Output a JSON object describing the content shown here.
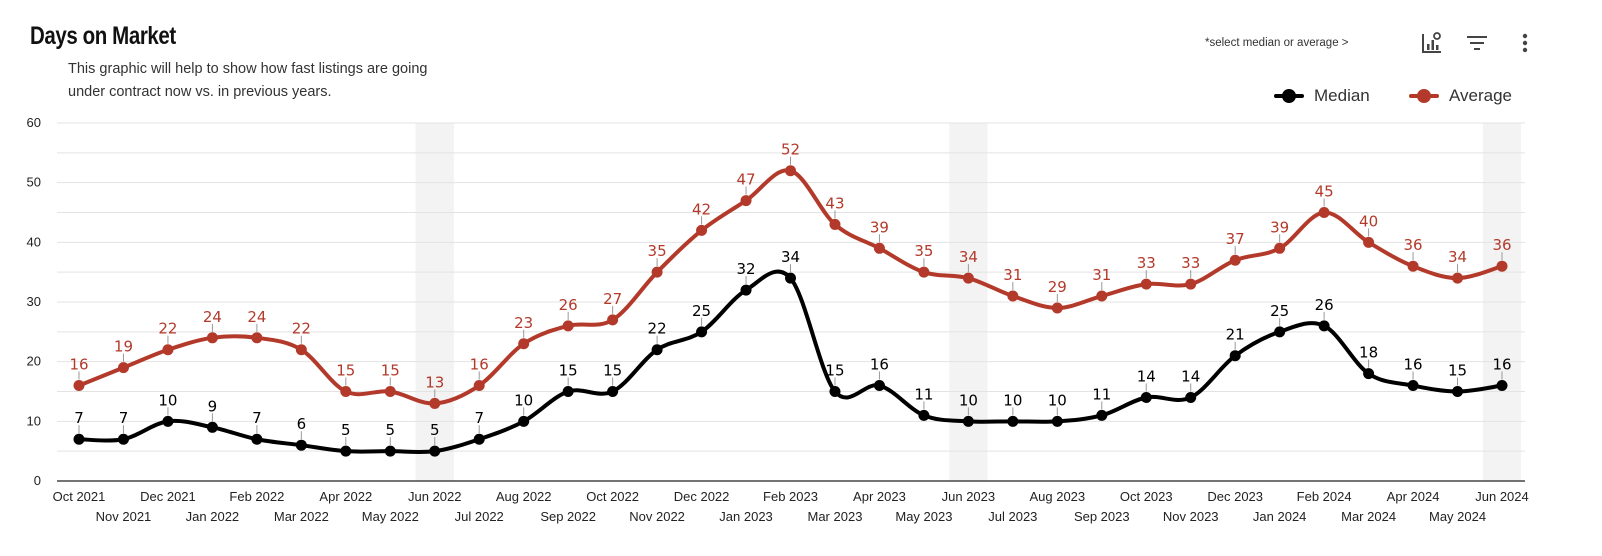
{
  "header": {
    "title": "Days on Market",
    "subtitle_line1": "This graphic will help to show how fast listings are going",
    "subtitle_line2": "under contract now vs. in previous years.",
    "hint": "*select median or average >"
  },
  "toolbar": {
    "icons": [
      "chart-settings-icon",
      "filter-icon",
      "more-vert-icon"
    ]
  },
  "colors": {
    "median": "#000000",
    "average": "#b33a2b",
    "grid": "#e3e3e3",
    "band": "#f3f3f3"
  },
  "chart_data": {
    "type": "line",
    "title": "Days on Market",
    "categories": [
      "Oct 2021",
      "Nov 2021",
      "Dec 2021",
      "Jan 2022",
      "Feb 2022",
      "Mar 2022",
      "Apr 2022",
      "May 2022",
      "Jun 2022",
      "Jul 2022",
      "Aug 2022",
      "Sep 2022",
      "Oct 2022",
      "Nov 2022",
      "Dec 2022",
      "Jan 2023",
      "Feb 2023",
      "Mar 2023",
      "Apr 2023",
      "May 2023",
      "Jun 2023",
      "Jul 2023",
      "Aug 2023",
      "Sep 2023",
      "Oct 2023",
      "Nov 2023",
      "Dec 2023",
      "Jan 2024",
      "Feb 2024",
      "Mar 2024",
      "Apr 2024",
      "May 2024",
      "Jun 2024"
    ],
    "series": [
      {
        "name": "Median",
        "color": "#000000",
        "values": [
          7,
          7,
          10,
          9,
          7,
          6,
          5,
          5,
          5,
          7,
          10,
          15,
          15,
          22,
          25,
          32,
          34,
          15,
          16,
          11,
          10,
          10,
          10,
          11,
          14,
          14,
          21,
          25,
          26,
          18,
          16,
          15,
          16
        ]
      },
      {
        "name": "Average",
        "color": "#b33a2b",
        "values": [
          16,
          19,
          22,
          24,
          24,
          22,
          15,
          15,
          13,
          16,
          23,
          26,
          27,
          35,
          42,
          47,
          52,
          43,
          39,
          35,
          34,
          31,
          29,
          31,
          33,
          33,
          37,
          39,
          45,
          40,
          36,
          34,
          36
        ]
      }
    ],
    "ylim": [
      0,
      60
    ],
    "yticks": [
      0,
      10,
      20,
      30,
      40,
      50,
      60
    ],
    "highlighted_months": [
      "Jun 2022",
      "Jun 2023",
      "Jun 2024"
    ],
    "legend_position": "top-right",
    "grid": true
  }
}
